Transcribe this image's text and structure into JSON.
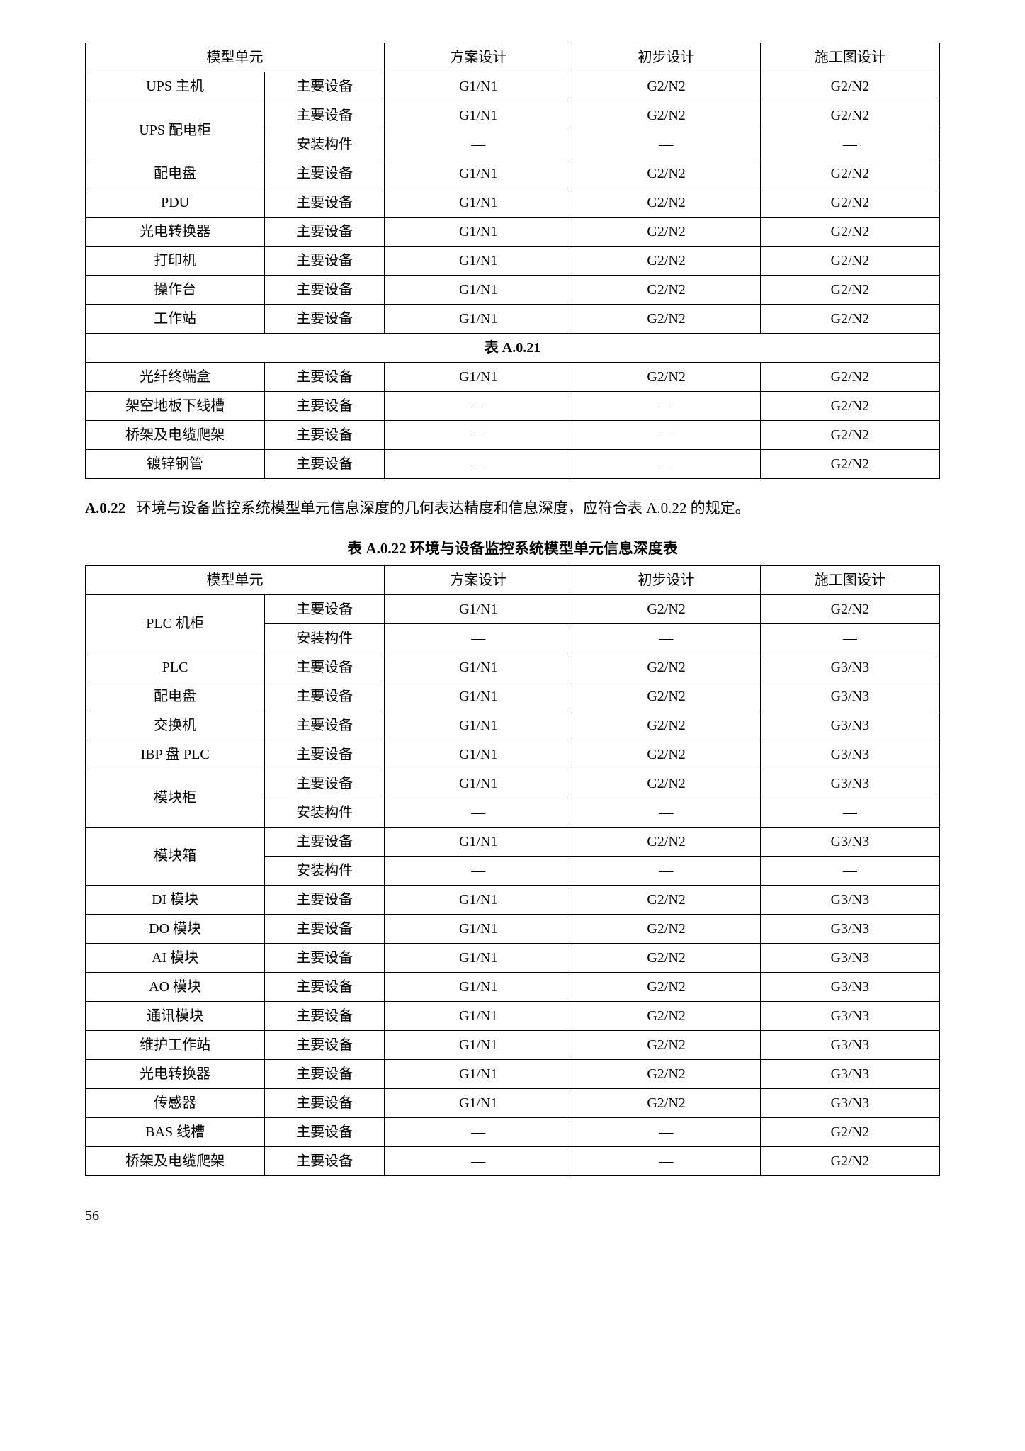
{
  "table1": {
    "columns": [
      "模型单元",
      "",
      "方案设计",
      "初步设计",
      "施工图设计"
    ],
    "col_widths": [
      "20%",
      "12%",
      "15%",
      "15%",
      "15%"
    ],
    "rows": [
      {
        "unit": "UPS 主机",
        "type": "主要设备",
        "c1": "G1/N1",
        "c2": "G2/N2",
        "c3": "G2/N2",
        "span": 1
      },
      {
        "unit": "UPS 配电柜",
        "type": "主要设备",
        "c1": "G1/N1",
        "c2": "G2/N2",
        "c3": "G2/N2",
        "span": 2
      },
      {
        "unit": "",
        "type": "安装构件",
        "c1": "—",
        "c2": "—",
        "c3": "—",
        "span": 0
      },
      {
        "unit": "配电盘",
        "type": "主要设备",
        "c1": "G1/N1",
        "c2": "G2/N2",
        "c3": "G2/N2",
        "span": 1
      },
      {
        "unit": "PDU",
        "type": "主要设备",
        "c1": "G1/N1",
        "c2": "G2/N2",
        "c3": "G2/N2",
        "span": 1
      },
      {
        "unit": "光电转换器",
        "type": "主要设备",
        "c1": "G1/N1",
        "c2": "G2/N2",
        "c3": "G2/N2",
        "span": 1
      },
      {
        "unit": "打印机",
        "type": "主要设备",
        "c1": "G1/N1",
        "c2": "G2/N2",
        "c3": "G2/N2",
        "span": 1
      },
      {
        "unit": "操作台",
        "type": "主要设备",
        "c1": "G1/N1",
        "c2": "G2/N2",
        "c3": "G2/N2",
        "span": 1
      },
      {
        "unit": "工作站",
        "type": "主要设备",
        "c1": "G1/N1",
        "c2": "G2/N2",
        "c3": "G2/N2",
        "span": 1
      }
    ],
    "section_label": "表 A.0.21",
    "rows2": [
      {
        "unit": "光纤终端盒",
        "type": "主要设备",
        "c1": "G1/N1",
        "c2": "G2/N2",
        "c3": "G2/N2",
        "span": 1
      },
      {
        "unit": "架空地板下线槽",
        "type": "主要设备",
        "c1": "—",
        "c2": "—",
        "c3": "G2/N2",
        "span": 1
      },
      {
        "unit": "桥架及电缆爬架",
        "type": "主要设备",
        "c1": "—",
        "c2": "—",
        "c3": "G2/N2",
        "span": 1
      },
      {
        "unit": "镀锌钢管",
        "type": "主要设备",
        "c1": "—",
        "c2": "—",
        "c3": "G2/N2",
        "span": 1
      }
    ]
  },
  "paragraph": {
    "label": "A.0.22",
    "text": "环境与设备监控系统模型单元信息深度的几何表达精度和信息深度，应符合表 A.0.22 的规定。"
  },
  "table2_caption": "表 A.0.22 环境与设备监控系统模型单元信息深度表",
  "table2": {
    "columns": [
      "模型单元",
      "",
      "方案设计",
      "初步设计",
      "施工图设计"
    ],
    "rows": [
      {
        "unit": "PLC 机柜",
        "type": "主要设备",
        "c1": "G1/N1",
        "c2": "G2/N2",
        "c3": "G2/N2",
        "span": 2
      },
      {
        "unit": "",
        "type": "安装构件",
        "c1": "—",
        "c2": "—",
        "c3": "—",
        "span": 0
      },
      {
        "unit": "PLC",
        "type": "主要设备",
        "c1": "G1/N1",
        "c2": "G2/N2",
        "c3": "G3/N3",
        "span": 1
      },
      {
        "unit": "配电盘",
        "type": "主要设备",
        "c1": "G1/N1",
        "c2": "G2/N2",
        "c3": "G3/N3",
        "span": 1
      },
      {
        "unit": "交换机",
        "type": "主要设备",
        "c1": "G1/N1",
        "c2": "G2/N2",
        "c3": "G3/N3",
        "span": 1
      },
      {
        "unit": "IBP 盘 PLC",
        "type": "主要设备",
        "c1": "G1/N1",
        "c2": "G2/N2",
        "c3": "G3/N3",
        "span": 1
      },
      {
        "unit": "模块柜",
        "type": "主要设备",
        "c1": "G1/N1",
        "c2": "G2/N2",
        "c3": "G3/N3",
        "span": 2
      },
      {
        "unit": "",
        "type": "安装构件",
        "c1": "—",
        "c2": "—",
        "c3": "—",
        "span": 0
      },
      {
        "unit": "模块箱",
        "type": "主要设备",
        "c1": "G1/N1",
        "c2": "G2/N2",
        "c3": "G3/N3",
        "span": 2
      },
      {
        "unit": "",
        "type": "安装构件",
        "c1": "—",
        "c2": "—",
        "c3": "—",
        "span": 0
      },
      {
        "unit": "DI 模块",
        "type": "主要设备",
        "c1": "G1/N1",
        "c2": "G2/N2",
        "c3": "G3/N3",
        "span": 1
      },
      {
        "unit": "DO 模块",
        "type": "主要设备",
        "c1": "G1/N1",
        "c2": "G2/N2",
        "c3": "G3/N3",
        "span": 1
      },
      {
        "unit": "AI 模块",
        "type": "主要设备",
        "c1": "G1/N1",
        "c2": "G2/N2",
        "c3": "G3/N3",
        "span": 1
      },
      {
        "unit": "AO 模块",
        "type": "主要设备",
        "c1": "G1/N1",
        "c2": "G2/N2",
        "c3": "G3/N3",
        "span": 1
      },
      {
        "unit": "通讯模块",
        "type": "主要设备",
        "c1": "G1/N1",
        "c2": "G2/N2",
        "c3": "G3/N3",
        "span": 1
      },
      {
        "unit": "维护工作站",
        "type": "主要设备",
        "c1": "G1/N1",
        "c2": "G2/N2",
        "c3": "G3/N3",
        "span": 1
      },
      {
        "unit": "光电转换器",
        "type": "主要设备",
        "c1": "G1/N1",
        "c2": "G2/N2",
        "c3": "G3/N3",
        "span": 1
      },
      {
        "unit": "传感器",
        "type": "主要设备",
        "c1": "G1/N1",
        "c2": "G2/N2",
        "c3": "G3/N3",
        "span": 1
      },
      {
        "unit": "BAS 线槽",
        "type": "主要设备",
        "c1": "—",
        "c2": "—",
        "c3": "G2/N2",
        "span": 1
      },
      {
        "unit": "桥架及电缆爬架",
        "type": "主要设备",
        "c1": "—",
        "c2": "—",
        "c3": "G2/N2",
        "span": 1
      }
    ]
  },
  "page_number": "56"
}
